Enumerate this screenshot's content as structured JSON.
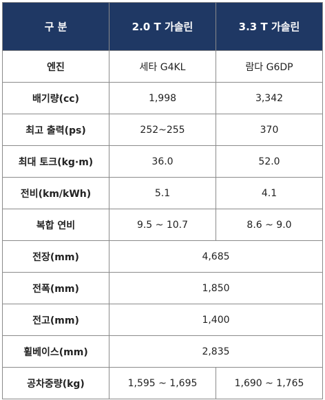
{
  "header": {
    "category": "구 분",
    "col1": "2.0 T 가솔린",
    "col2": "3.3 T 가솔린"
  },
  "rows": [
    {
      "label": "엔진",
      "v1": "세타 G4KL",
      "v2": "람다 G6DP"
    },
    {
      "label": "배기량(cc)",
      "v1": "1,998",
      "v2": "3,342"
    },
    {
      "label": "최고 출력(ps)",
      "v1": "252~255",
      "v2": "370"
    },
    {
      "label": "최대 토크(kg·m)",
      "v1": "36.0",
      "v2": "52.0"
    },
    {
      "label": "전비(km/kWh)",
      "v1": "5.1",
      "v2": "4.1"
    },
    {
      "label": "복합 연비",
      "v1": "9.5 ~ 10.7",
      "v2": "8.6 ~ 9.0"
    },
    {
      "label": "전장(mm)",
      "v": "4,685"
    },
    {
      "label": "전폭(mm)",
      "v": "1,850"
    },
    {
      "label": "전고(mm)",
      "v": "1,400"
    },
    {
      "label": "휠베이스(mm)",
      "v": "2,835"
    },
    {
      "label": "공차중량(kg)",
      "v1": "1,595 ~ 1,695",
      "v2": "1,690 ~ 1,765"
    }
  ],
  "colors": {
    "header_bg": "#1f3864",
    "header_text": "#ffffff",
    "border": "#8a8a8a"
  }
}
